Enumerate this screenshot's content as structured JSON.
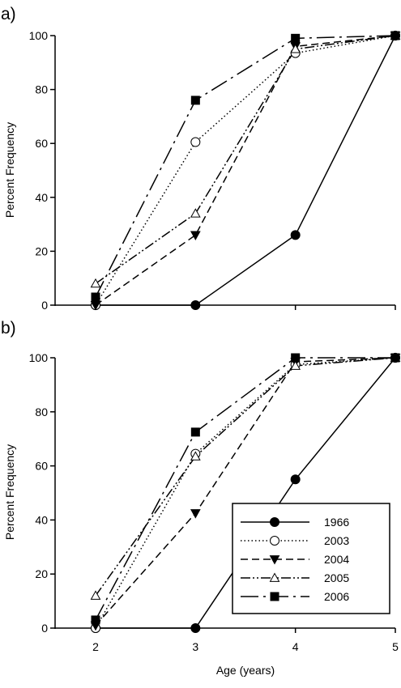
{
  "chart_data": [
    {
      "type": "line",
      "panel_label": "a)",
      "x": [
        2,
        3,
        4,
        5
      ],
      "xlim": [
        2,
        5
      ],
      "ylim": [
        0,
        100
      ],
      "yticks": [
        0,
        20,
        40,
        60,
        80,
        100
      ],
      "ylabel": "Percent Frequency",
      "xlabel": "",
      "grid": false,
      "series": [
        {
          "name": "1966",
          "values": [
            0,
            0,
            26,
            100
          ],
          "marker": "filled-circle",
          "dash": "solid"
        },
        {
          "name": "2003",
          "values": [
            0,
            60.5,
            93.5,
            100
          ],
          "marker": "open-circle",
          "dash": "dotted"
        },
        {
          "name": "2004",
          "values": [
            0,
            26,
            96,
            100
          ],
          "marker": "filled-triangle-down",
          "dash": "dashed"
        },
        {
          "name": "2005",
          "values": [
            8,
            34,
            95,
            100
          ],
          "marker": "open-triangle-up",
          "dash": "dash-dot-dot"
        },
        {
          "name": "2006",
          "values": [
            3,
            76,
            99,
            100
          ],
          "marker": "filled-square",
          "dash": "long-dash-dot"
        }
      ]
    },
    {
      "type": "line",
      "panel_label": "b)",
      "x": [
        2,
        3,
        4,
        5
      ],
      "xticks": [
        2,
        3,
        4,
        5
      ],
      "xlim": [
        2,
        5
      ],
      "ylim": [
        0,
        100
      ],
      "yticks": [
        0,
        20,
        40,
        60,
        80,
        100
      ],
      "ylabel": "Percent Frequency",
      "xlabel": "Age (years)",
      "grid": false,
      "legend": "bottom-right",
      "series": [
        {
          "name": "1966",
          "values": [
            0,
            0,
            55,
            100
          ],
          "marker": "filled-circle",
          "dash": "solid"
        },
        {
          "name": "2003",
          "values": [
            0,
            64.5,
            97.5,
            100
          ],
          "marker": "open-circle",
          "dash": "dotted"
        },
        {
          "name": "2004",
          "values": [
            1,
            42.5,
            98.5,
            100
          ],
          "marker": "filled-triangle-down",
          "dash": "dashed"
        },
        {
          "name": "2005",
          "values": [
            12,
            63.5,
            97,
            100
          ],
          "marker": "open-triangle-up",
          "dash": "dash-dot-dot"
        },
        {
          "name": "2006",
          "values": [
            3,
            72.5,
            100,
            100
          ],
          "marker": "filled-square",
          "dash": "long-dash-dot"
        }
      ]
    }
  ]
}
